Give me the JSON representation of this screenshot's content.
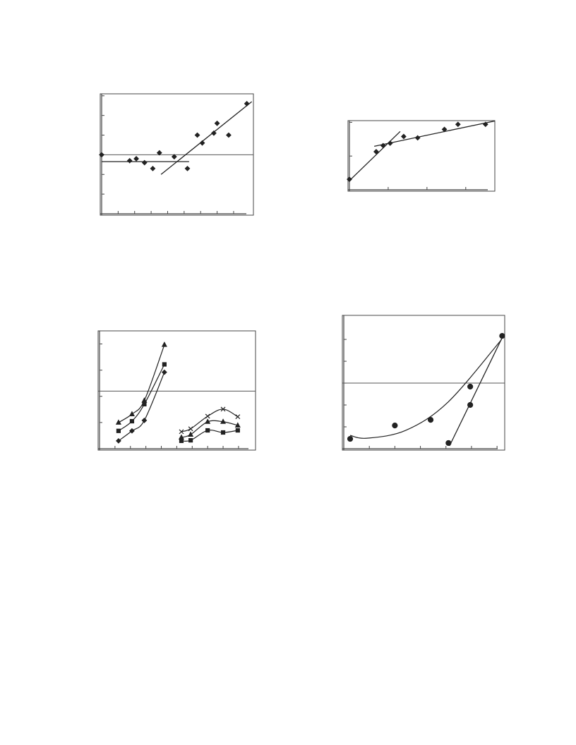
{
  "chart_data": [
    {
      "type": "scatter",
      "xlim": [
        0,
        9.2
      ],
      "ylim": [
        0,
        6.1
      ],
      "xticks": [
        0,
        1,
        2,
        3,
        4,
        5,
        6,
        7,
        8
      ],
      "yticks": [
        0,
        1,
        2,
        3,
        4,
        5,
        6
      ],
      "reference_line": 3.0,
      "color": "#222",
      "series": [
        {
          "marker": "diamond",
          "line": "none",
          "x": [
            0,
            1.7,
            2.1,
            2.6,
            3.1,
            3.5,
            4.4,
            5.2,
            5.8,
            6.1,
            6.8,
            7.0,
            7.7,
            8.8
          ],
          "values": [
            3.0,
            2.7,
            2.8,
            2.6,
            2.3,
            3.1,
            2.9,
            2.3,
            4.0,
            3.6,
            4.1,
            4.6,
            4.0,
            5.6
          ]
        },
        {
          "marker": "none",
          "line": "straight",
          "x": [
            0,
            5.3
          ],
          "values": [
            2.65,
            2.65
          ]
        },
        {
          "marker": "none",
          "line": "straight",
          "x": [
            3.6,
            9.1
          ],
          "values": [
            2.0,
            5.7
          ]
        }
      ]
    },
    {
      "type": "scatter",
      "xlim": [
        0,
        3.75
      ],
      "ylim": [
        0,
        2.05
      ],
      "xticks": [
        0,
        1,
        2,
        3
      ],
      "yticks": [
        0,
        1,
        2
      ],
      "color": "#222",
      "series": [
        {
          "marker": "diamond",
          "line": "none",
          "x": [
            0,
            0.69,
            0.87,
            1.05,
            1.4,
            1.76,
            2.45,
            2.8,
            3.51
          ],
          "values": [
            0.31,
            1.13,
            1.31,
            1.38,
            1.58,
            1.54,
            1.79,
            1.94,
            1.94
          ]
        },
        {
          "marker": "none",
          "line": "straight",
          "x": [
            0,
            1.31
          ],
          "values": [
            0.27,
            1.73
          ]
        },
        {
          "marker": "none",
          "line": "straight",
          "x": [
            0.64,
            3.75
          ],
          "values": [
            1.29,
            2.04
          ]
        }
      ]
    },
    {
      "type": "scatter",
      "xlim": [
        0,
        10.1
      ],
      "ylim": [
        0,
        4.5
      ],
      "xticks": [
        1,
        2,
        3,
        4,
        5,
        6,
        7,
        8,
        9
      ],
      "yticks": [
        0,
        1,
        2,
        3,
        4
      ],
      "reference_line": 2.2,
      "color": "#222",
      "series": [
        {
          "marker": "triangle",
          "line": "smooth",
          "x": [
            1.23,
            2.1,
            2.9,
            4.2
          ],
          "values": [
            1.0,
            1.32,
            1.84,
            3.97
          ]
        },
        {
          "marker": "square",
          "line": "smooth",
          "x": [
            1.23,
            2.1,
            2.9,
            4.2
          ],
          "values": [
            0.68,
            1.05,
            1.7,
            3.22
          ]
        },
        {
          "marker": "diamond",
          "line": "smooth",
          "x": [
            1.23,
            2.1,
            2.9,
            4.2
          ],
          "values": [
            0.3,
            0.68,
            1.08,
            2.92
          ]
        },
        {
          "marker": "cross",
          "line": "smooth",
          "x": [
            5.3,
            5.9,
            7.0,
            8.0,
            8.95
          ],
          "values": [
            0.65,
            0.76,
            1.24,
            1.51,
            1.22
          ]
        },
        {
          "marker": "triangle",
          "line": "smooth",
          "x": [
            5.3,
            5.9,
            7.0,
            8.0,
            8.95
          ],
          "values": [
            0.43,
            0.54,
            1.03,
            1.03,
            0.89
          ]
        },
        {
          "marker": "square",
          "line": "smooth",
          "x": [
            5.3,
            5.9,
            7.0,
            8.0,
            8.95
          ],
          "values": [
            0.3,
            0.32,
            0.7,
            0.62,
            0.7
          ]
        }
      ]
    },
    {
      "type": "scatter",
      "xlim": [
        0,
        6.3
      ],
      "ylim": [
        0,
        6.1
      ],
      "xticks": [
        0,
        1,
        2,
        3,
        4,
        5,
        6
      ],
      "yticks": [
        0,
        1,
        2,
        3,
        4,
        5
      ],
      "reference_line": 3.0,
      "color": "#222",
      "series": [
        {
          "marker": "circle",
          "line": "none",
          "x": [
            0.25,
            2.0,
            3.4,
            4.1,
            4.95,
            4.95,
            6.2
          ],
          "values": [
            0.45,
            1.06,
            1.32,
            0.26,
            2.84,
            2.0,
            5.16
          ]
        },
        {
          "marker": "none",
          "line": "smooth",
          "x": [
            0.25,
            0.91,
            2.43,
            4.08,
            6.18
          ],
          "values": [
            0.61,
            0.48,
            0.84,
            2.13,
            5.0
          ]
        },
        {
          "marker": "none",
          "line": "straight",
          "x": [
            4.14,
            6.18
          ],
          "values": [
            0.13,
            5.03
          ]
        }
      ]
    }
  ]
}
